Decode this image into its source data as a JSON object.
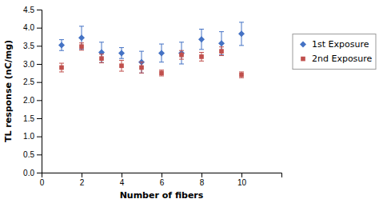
{
  "chart_data": {
    "type": "scatter",
    "xlabel": "Number of fibers",
    "ylabel": "TL response (nC/mg)",
    "x": [
      1,
      2,
      3,
      4,
      5,
      6,
      7,
      8,
      9,
      10
    ],
    "series": [
      {
        "name": "1st Exposure",
        "color": "#4472C4",
        "marker": "diamond",
        "values": [
          3.52,
          3.72,
          3.32,
          3.3,
          3.05,
          3.3,
          3.3,
          3.68,
          3.57,
          3.83
        ],
        "errors": [
          0.15,
          0.32,
          0.28,
          0.15,
          0.3,
          0.25,
          0.3,
          0.28,
          0.32,
          0.32
        ]
      },
      {
        "name": "2nd Exposure",
        "color": "#C0504D",
        "marker": "square",
        "values": [
          2.9,
          3.48,
          3.15,
          2.95,
          2.9,
          2.75,
          3.25,
          3.2,
          3.35,
          2.7
        ],
        "errors": [
          0.12,
          0.1,
          0.12,
          0.15,
          0.15,
          0.08,
          0.12,
          0.12,
          0.12,
          0.08
        ]
      }
    ],
    "xlim": [
      0,
      12
    ],
    "ylim": [
      0,
      4.5
    ],
    "xticks": [
      0,
      2,
      4,
      6,
      8,
      10
    ],
    "yticks": [
      {
        "value": 0,
        "label": "0.0"
      },
      0.5,
      {
        "value": 1.0,
        "label": "1.0"
      },
      1.5,
      {
        "value": 2.0,
        "label": "2.0"
      },
      2.5,
      {
        "value": 3.0,
        "label": "3.0"
      },
      3.5,
      {
        "value": 4.0,
        "label": "4.0"
      },
      4.5
    ],
    "grid": false,
    "legend": "right"
  }
}
